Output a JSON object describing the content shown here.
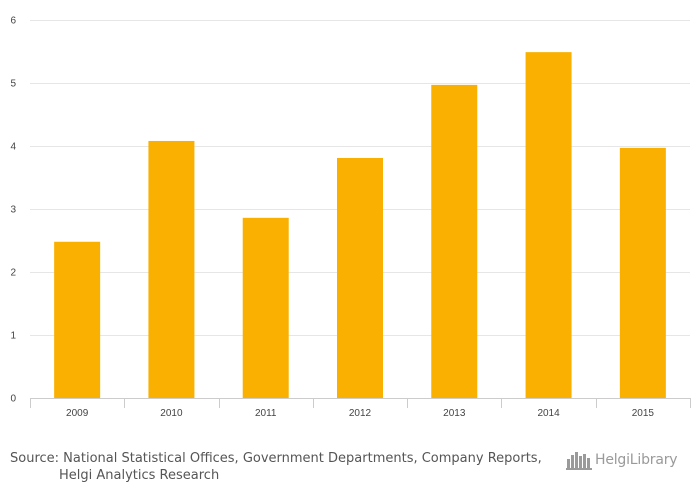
{
  "chart_data": {
    "type": "bar",
    "title": "",
    "xlabel": "",
    "ylabel": "",
    "categories": [
      "2009",
      "2010",
      "2011",
      "2012",
      "2013",
      "2014",
      "2015"
    ],
    "values": [
      2.48,
      4.08,
      2.86,
      3.81,
      4.97,
      5.49,
      3.97
    ],
    "ylim": [
      0,
      6
    ],
    "yticks": [
      0,
      1,
      2,
      3,
      4,
      5,
      6
    ],
    "grid": true,
    "legend": "none",
    "bar_color": "#f9b000",
    "grid_color": "#e6e6e6",
    "axis_color": "#cccccc"
  },
  "footer": {
    "source_prefix": "Source:",
    "source_line1": "National Statistical Offices, Government Departments, Company Reports,",
    "source_line2": "Helgi Analytics Research",
    "logo_text": "HelgiLibrary",
    "logo_icon": "city-skyline-icon"
  }
}
